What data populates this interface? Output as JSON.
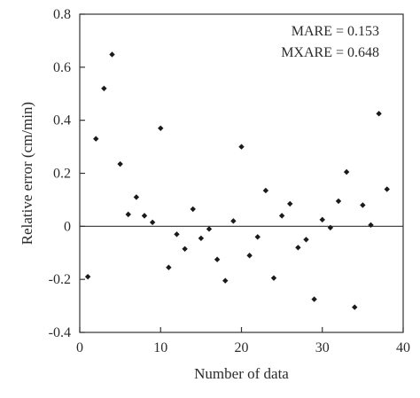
{
  "chart_data": {
    "type": "scatter",
    "title": "",
    "xlabel": "Number of data",
    "ylabel": "Relative error (cm/min)",
    "xlim": [
      0,
      40
    ],
    "ylim": [
      -0.4,
      0.8
    ],
    "x_ticks": [
      0,
      10,
      20,
      30,
      40
    ],
    "y_ticks": [
      -0.4,
      -0.2,
      0,
      0.2,
      0.4,
      0.6,
      0.8
    ],
    "x_tick_labels": [
      "0",
      "10",
      "20",
      "30",
      "40"
    ],
    "y_tick_labels": [
      "-0.4",
      "-0.2",
      "0",
      "0.2",
      "0.4",
      "0.6",
      "0.8"
    ],
    "grid": false,
    "zero_line": true,
    "marker": "diamond",
    "marker_color": "#1a1a1a",
    "axis_color": "#333333",
    "annotations": [
      "MARE = 0.153",
      "MXARE = 0.648"
    ],
    "annotation_placement": "top-right",
    "series": [
      {
        "points": [
          [
            1,
            -0.19
          ],
          [
            2,
            0.33
          ],
          [
            3,
            0.52
          ],
          [
            4,
            0.648
          ],
          [
            5,
            0.235
          ],
          [
            6,
            0.045
          ],
          [
            7,
            0.11
          ],
          [
            8,
            0.04
          ],
          [
            9,
            0.015
          ],
          [
            10,
            0.37
          ],
          [
            11,
            -0.155
          ],
          [
            12,
            -0.03
          ],
          [
            13,
            -0.085
          ],
          [
            14,
            0.065
          ],
          [
            15,
            -0.045
          ],
          [
            16,
            -0.01
          ],
          [
            17,
            -0.125
          ],
          [
            18,
            -0.205
          ],
          [
            19,
            0.02
          ],
          [
            20,
            0.3
          ],
          [
            21,
            -0.11
          ],
          [
            22,
            -0.04
          ],
          [
            23,
            0.135
          ],
          [
            24,
            -0.195
          ],
          [
            25,
            0.04
          ],
          [
            26,
            0.085
          ],
          [
            27,
            -0.08
          ],
          [
            28,
            -0.05
          ],
          [
            29,
            -0.275
          ],
          [
            30,
            0.025
          ],
          [
            31,
            -0.005
          ],
          [
            32,
            0.095
          ],
          [
            33,
            0.205
          ],
          [
            34,
            -0.305
          ],
          [
            35,
            0.08
          ],
          [
            36,
            0.005
          ],
          [
            37,
            0.425
          ],
          [
            38,
            0.14
          ]
        ]
      }
    ]
  }
}
